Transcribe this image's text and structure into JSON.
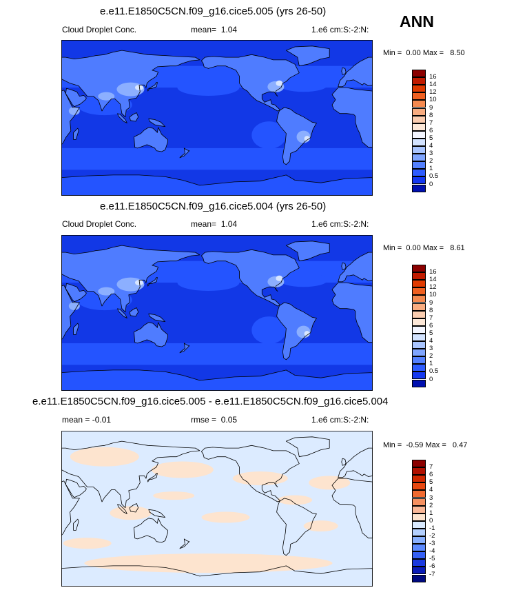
{
  "season": "ANN",
  "panels": [
    {
      "title": "e.e11.E1850C5CN.f09_g16.cice5.005 (yrs 26-50)",
      "left_label": "Cloud Droplet Conc.",
      "stat_label": "mean=",
      "stat_value": "1.04",
      "units": "1.e6 cm:S:-2:N:",
      "min_label": "Min =",
      "min_value": "0.00",
      "max_label": "Max =",
      "max_value": "8.50",
      "colorbar_levels": [
        "16",
        "14",
        "12",
        "10",
        "9",
        "8",
        "7",
        "6",
        "5",
        "4",
        "3",
        "2",
        "1",
        "0.5",
        "0"
      ],
      "colorbar_colors": [
        "#8b0000",
        "#c11b00",
        "#e03a00",
        "#f06020",
        "#f58a50",
        "#f8ac80",
        "#fbcdb0",
        "#fde8d8",
        "#f4f6ff",
        "#d3e3ff",
        "#a9c5ff",
        "#7fa5ff",
        "#5481ff",
        "#2e5cff",
        "#1438f0",
        "#0010b0"
      ]
    },
    {
      "title": "e.e11.E1850C5CN.f09_g16.cice5.004 (yrs 26-50)",
      "left_label": "Cloud Droplet Conc.",
      "stat_label": "mean=",
      "stat_value": "1.04",
      "units": "1.e6 cm:S:-2:N:",
      "min_label": "Min =",
      "min_value": "0.00",
      "max_label": "Max =",
      "max_value": "8.61",
      "colorbar_levels": [
        "16",
        "14",
        "12",
        "10",
        "9",
        "8",
        "7",
        "6",
        "5",
        "4",
        "3",
        "2",
        "1",
        "0.5",
        "0"
      ],
      "colorbar_colors": [
        "#8b0000",
        "#c11b00",
        "#e03a00",
        "#f06020",
        "#f58a50",
        "#f8ac80",
        "#fbcdb0",
        "#fde8d8",
        "#f4f6ff",
        "#d3e3ff",
        "#a9c5ff",
        "#7fa5ff",
        "#5481ff",
        "#2e5cff",
        "#1438f0",
        "#0010b0"
      ]
    },
    {
      "title": "e.e11.E1850C5CN.f09_g16.cice5.005 - e.e11.E1850C5CN.f09_g16.cice5.004",
      "left_label": "mean = -0.01",
      "stat_label": "rmse =",
      "stat_value": "0.05",
      "units": "1.e6 cm:S:-2:N:",
      "min_label": "Min =",
      "min_value": "-0.59",
      "max_label": "Max =",
      "max_value": "0.47",
      "colorbar_levels": [
        "7",
        "6",
        "5",
        "4",
        "3",
        "2",
        "1",
        "0",
        "-1",
        "-2",
        "-3",
        "-4",
        "-5",
        "-6",
        "-7"
      ],
      "colorbar_colors": [
        "#8b0000",
        "#b01000",
        "#d02800",
        "#e84810",
        "#f06a30",
        "#f59060",
        "#fab898",
        "#fde4cf",
        "#d9eaff",
        "#b3d0ff",
        "#88b0ff",
        "#5c8aff",
        "#3560f5",
        "#1a3ae0",
        "#0a1cb8",
        "#000a80"
      ]
    }
  ],
  "map_colors": {
    "ocean_base": "#1238e6",
    "ocean_light": "#2454ff",
    "land_mid": "#4f7cff",
    "land_light": "#8cafff",
    "land_pale": "#d8e6ff",
    "coast": "#000000",
    "diff_base": "#dcebff",
    "diff_pos": "#fde4cf"
  }
}
